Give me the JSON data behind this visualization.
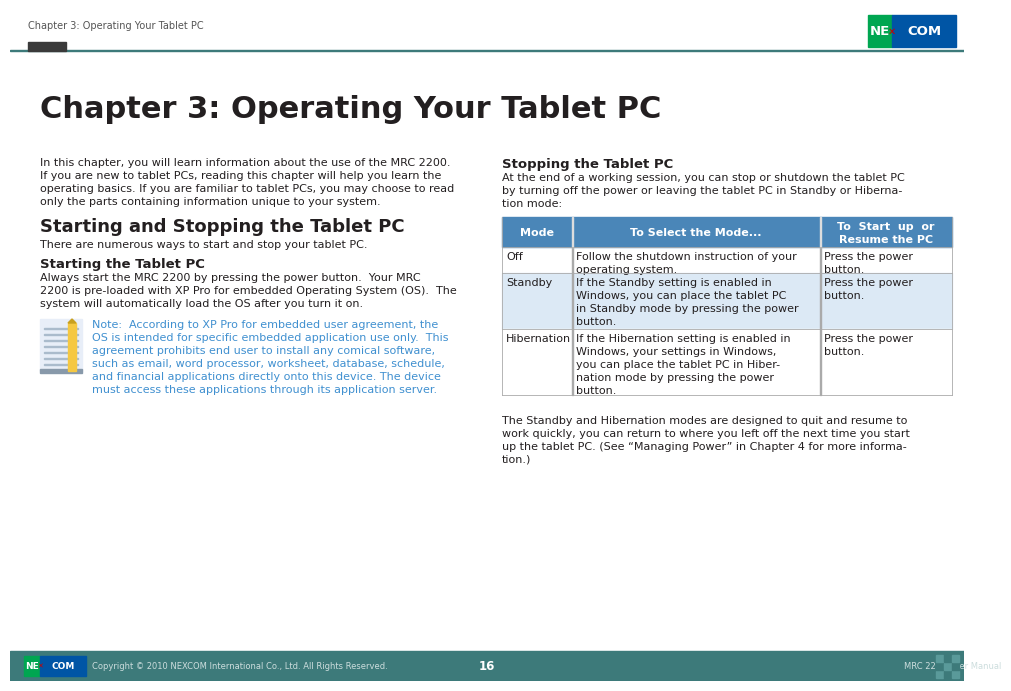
{
  "page_header_text": "Chapter 3: Operating Your Tablet PC",
  "header_line_color": "#3d7a7a",
  "chapter_title": "Chapter 3: Operating Your Tablet PC",
  "intro_text": "In this chapter, you will learn information about the use of the MRC 2200.\nIf you are new to tablet PCs, reading this chapter will help you learn the\noperating basics. If you are familiar to tablet PCs, you may choose to read\nonly the parts containing information unique to your system.",
  "section1_title": "Starting and Stopping the Tablet PC",
  "section1_subtitle": "There are numerous ways to start and stop your tablet PC.",
  "starting_title": "Starting the Tablet PC",
  "starting_text": "Always start the MRC 2200 by pressing the power button.  Your MRC\n2200 is pre-loaded with XP Pro for embedded Operating System (OS).  The\nsystem will automatically load the OS after you turn it on.",
  "note_text": "Note:  According to XP Pro for embedded user agreement, the\nOS is intended for specific embedded application use only.  This\nagreement prohibits end user to install any comical software,\nsuch as email, word processor, worksheet, database, schedule,\nand financial applications directly onto this device. The device\nmust access these applications through its application server.",
  "note_color": "#4090d0",
  "stopping_title": "Stopping the Tablet PC",
  "stopping_intro": "At the end of a working session, you can stop or shutdown the tablet PC\nby turning off the power or leaving the tablet PC in Standby or Hiberna-\ntion mode:",
  "table_header_bg": "#4a86b8",
  "table_header_color": "#ffffff",
  "table_alt_bg": "#dce9f5",
  "table_col1": "Mode",
  "table_col2": "To Select the Mode...",
  "table_col3_line1": "To  Start  up  or",
  "table_col3_line2": "Resume the PC",
  "table_rows": [
    [
      "Off",
      "Follow the shutdown instruction of your\noperating system.",
      "Press the power\nbutton."
    ],
    [
      "Standby",
      "If the Standby setting is enabled in\nWindows, you can place the tablet PC\nin Standby mode by pressing the power\nbutton.",
      "Press the power\nbutton."
    ],
    [
      "Hibernation",
      "If the Hibernation setting is enabled in\nWindows, your settings in Windows,\nyou can place the tablet PC in Hiber-\nnation mode by pressing the power\nbutton.",
      "Press the power\nbutton."
    ]
  ],
  "row_bg_colors": [
    "#ffffff",
    "#dce9f5",
    "#ffffff"
  ],
  "standby_note": "The Standby and Hibernation modes are designed to quit and resume to\nwork quickly, you can return to where you left off the next time you start\nup the tablet PC. (See “Managing Power” in Chapter 4 for more informa-\ntion.)",
  "footer_copyright": "Copyright © 2010 NEXCOM International Co., Ltd. All Rights Reserved.",
  "footer_page": "16",
  "footer_manual": "MRC 2200 User Manual",
  "footer_bg": "#3d7a7a",
  "logo_green": "#00a651",
  "logo_blue": "#0055a5",
  "bg_color": "#ffffff",
  "text_color": "#231f20",
  "gray_text": "#555555",
  "body_fontsize": 8.0,
  "title_fontsize": 22,
  "section_fontsize": 13,
  "subsection_fontsize": 9.5,
  "header_fontsize": 7.0
}
